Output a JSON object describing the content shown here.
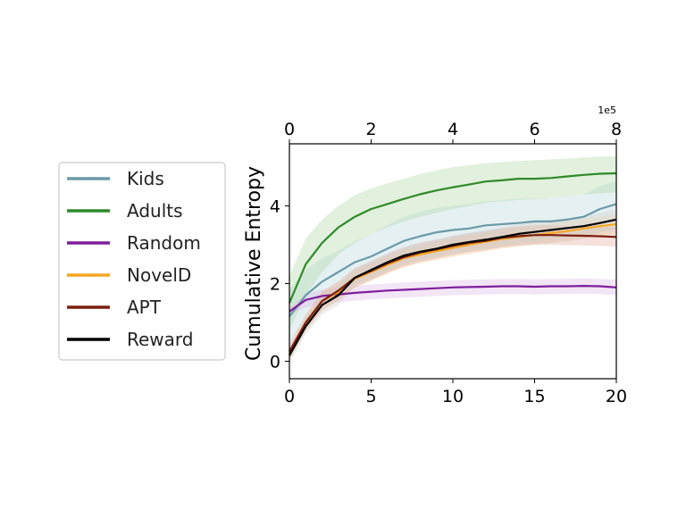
{
  "chart_data": {
    "type": "line",
    "title": "",
    "xlabel": "",
    "ylabel": "Cumulative Entropy",
    "xlim": [
      0,
      20
    ],
    "ylim": [
      -0.45,
      5.6
    ],
    "x_ticks": [
      "0",
      "5",
      "10",
      "15",
      "20"
    ],
    "y_ticks": [
      "0",
      "2",
      "4"
    ],
    "top_axis": {
      "ticks": [
        "0",
        "2",
        "4",
        "6",
        "8"
      ],
      "exponent_label": "1e5",
      "lim": [
        0,
        8
      ]
    },
    "grid": false,
    "legend_position": "left-outside",
    "x": [
      0,
      1,
      2,
      3,
      4,
      5,
      6,
      7,
      8,
      9,
      10,
      11,
      12,
      13,
      14,
      15,
      16,
      17,
      18,
      19,
      20
    ],
    "series": [
      {
        "name": "Kids",
        "color": "#6a9aa6",
        "band_color": "#b5d3dc",
        "values": [
          1.15,
          1.7,
          2.05,
          2.3,
          2.55,
          2.7,
          2.9,
          3.1,
          3.22,
          3.32,
          3.38,
          3.42,
          3.5,
          3.53,
          3.56,
          3.6,
          3.6,
          3.65,
          3.72,
          3.92,
          4.05
        ],
        "lower": [
          0.45,
          1.05,
          1.45,
          1.75,
          1.98,
          2.12,
          2.3,
          2.48,
          2.6,
          2.7,
          2.78,
          2.82,
          2.9,
          2.95,
          2.98,
          3.02,
          3.05,
          3.08,
          3.15,
          3.32,
          3.42
        ],
        "upper": [
          1.85,
          2.35,
          2.65,
          2.85,
          3.1,
          3.28,
          3.5,
          3.72,
          3.85,
          3.95,
          4.0,
          4.05,
          4.12,
          4.15,
          4.18,
          4.2,
          4.2,
          4.25,
          4.3,
          4.5,
          4.65
        ]
      },
      {
        "name": "Adults",
        "color": "#2f8a2a",
        "band_color": "#a9d79e",
        "values": [
          1.5,
          2.5,
          3.05,
          3.45,
          3.72,
          3.92,
          4.05,
          4.18,
          4.3,
          4.4,
          4.48,
          4.55,
          4.63,
          4.66,
          4.7,
          4.7,
          4.72,
          4.76,
          4.8,
          4.83,
          4.84
        ],
        "lower": [
          0.8,
          1.7,
          2.3,
          2.75,
          3.05,
          3.28,
          3.45,
          3.6,
          3.72,
          3.82,
          3.92,
          4.0,
          4.08,
          4.12,
          4.15,
          4.18,
          4.2,
          4.25,
          4.3,
          4.32,
          4.35
        ],
        "upper": [
          2.2,
          3.15,
          3.65,
          4.0,
          4.28,
          4.45,
          4.58,
          4.7,
          4.82,
          4.92,
          5.0,
          5.05,
          5.1,
          5.13,
          5.16,
          5.18,
          5.2,
          5.22,
          5.25,
          5.27,
          5.28
        ]
      },
      {
        "name": "Random",
        "color": "#7e1e9c",
        "band_color": "#d9b5e6",
        "values": [
          1.28,
          1.58,
          1.68,
          1.72,
          1.76,
          1.79,
          1.82,
          1.84,
          1.86,
          1.88,
          1.9,
          1.91,
          1.92,
          1.93,
          1.93,
          1.92,
          1.93,
          1.93,
          1.94,
          1.93,
          1.9
        ],
        "lower": [
          1.2,
          1.38,
          1.47,
          1.52,
          1.56,
          1.59,
          1.62,
          1.64,
          1.66,
          1.68,
          1.7,
          1.71,
          1.72,
          1.73,
          1.73,
          1.72,
          1.73,
          1.73,
          1.74,
          1.73,
          1.7
        ],
        "upper": [
          1.38,
          1.72,
          1.85,
          1.9,
          1.94,
          1.98,
          2.0,
          2.03,
          2.05,
          2.07,
          2.09,
          2.1,
          2.11,
          2.12,
          2.12,
          2.11,
          2.12,
          2.12,
          2.13,
          2.12,
          2.1
        ]
      },
      {
        "name": "NovelD",
        "color": "#f5a623",
        "band_color": "#fbd9a0",
        "values": [
          0.2,
          0.95,
          1.55,
          1.78,
          2.12,
          2.3,
          2.48,
          2.65,
          2.75,
          2.84,
          2.92,
          3.0,
          3.08,
          3.15,
          3.2,
          3.25,
          3.3,
          3.35,
          3.42,
          3.48,
          3.53
        ],
        "lower": [
          0.0,
          0.75,
          1.3,
          1.55,
          1.88,
          2.07,
          2.25,
          2.42,
          2.52,
          2.6,
          2.68,
          2.75,
          2.82,
          2.9,
          2.95,
          3.0,
          3.05,
          3.1,
          3.17,
          3.22,
          3.28
        ],
        "upper": [
          0.4,
          1.15,
          1.78,
          2.0,
          2.35,
          2.53,
          2.72,
          2.88,
          2.98,
          3.08,
          3.16,
          3.24,
          3.32,
          3.4,
          3.45,
          3.5,
          3.55,
          3.6,
          3.67,
          3.72,
          3.78
        ]
      },
      {
        "name": "APT",
        "color": "#7a1f10",
        "band_color": "#e2a59a",
        "values": [
          0.25,
          1.0,
          1.55,
          1.82,
          2.15,
          2.33,
          2.52,
          2.68,
          2.8,
          2.88,
          2.97,
          3.05,
          3.1,
          3.18,
          3.22,
          3.25,
          3.25,
          3.24,
          3.23,
          3.22,
          3.2
        ],
        "lower": [
          0.05,
          0.8,
          1.3,
          1.58,
          1.9,
          2.08,
          2.27,
          2.43,
          2.55,
          2.63,
          2.72,
          2.8,
          2.85,
          2.93,
          2.97,
          3.0,
          3.0,
          2.99,
          2.98,
          2.97,
          2.95
        ],
        "upper": [
          0.45,
          1.2,
          1.8,
          2.06,
          2.4,
          2.58,
          2.77,
          2.93,
          3.05,
          3.13,
          3.22,
          3.3,
          3.35,
          3.43,
          3.47,
          3.5,
          3.5,
          3.49,
          3.48,
          3.47,
          3.45
        ]
      },
      {
        "name": "Reward",
        "color": "#000000",
        "band_color": "#cfcfcf",
        "values": [
          0.15,
          0.9,
          1.45,
          1.7,
          2.15,
          2.35,
          2.55,
          2.72,
          2.82,
          2.9,
          3.0,
          3.07,
          3.13,
          3.2,
          3.28,
          3.33,
          3.38,
          3.43,
          3.48,
          3.56,
          3.65
        ],
        "lower": [
          -0.05,
          0.7,
          1.2,
          1.45,
          1.92,
          2.12,
          2.32,
          2.48,
          2.58,
          2.66,
          2.76,
          2.83,
          2.88,
          2.95,
          3.03,
          3.08,
          3.13,
          3.18,
          3.23,
          3.3,
          3.38
        ],
        "upper": [
          0.35,
          1.1,
          1.7,
          1.95,
          2.38,
          2.58,
          2.78,
          2.96,
          3.06,
          3.14,
          3.24,
          3.31,
          3.38,
          3.45,
          3.53,
          3.58,
          3.63,
          3.68,
          3.73,
          3.82,
          3.92
        ]
      }
    ]
  }
}
